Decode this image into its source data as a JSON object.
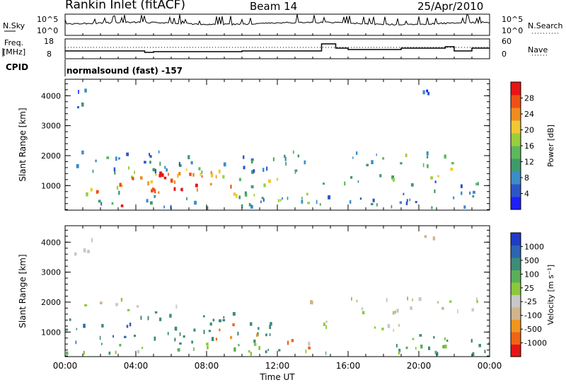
{
  "header": {
    "station": "Rankin Inlet (fitACF)",
    "beam": "Beam 14",
    "date": "25/Apr/2010"
  },
  "status_panels": {
    "nsky_label": "N.Sky",
    "nsearch_label": "N.Search",
    "nsky_ticks": [
      "10^5",
      "10^0"
    ],
    "nsearch_ticks": [
      "10^5",
      "10^0"
    ],
    "freq_label": "Freq.",
    "freq_unit": "[MHz]",
    "freq_ticks": [
      "18",
      "8"
    ],
    "nave_label": "Nave",
    "nave_ticks": [
      "60",
      "0"
    ],
    "cpid_label": "CPID",
    "cpid_value": "normalsound (fast) -157"
  },
  "colors": {
    "power": [
      "#1e1eff",
      "#2d55c8",
      "#3c8cc8",
      "#3f9a6a",
      "#5db85d",
      "#9ccd3c",
      "#f0c832",
      "#f08c1e",
      "#f05014",
      "#e81414"
    ],
    "velocity": [
      "#1e3cc8",
      "#2d64b4",
      "#3c8c78",
      "#5aaf5a",
      "#8cc83c",
      "#c8c8c8",
      "#d2b48c",
      "#f0961e",
      "#f06414",
      "#e81414"
    ],
    "ground_scatter": "#c8c8c8"
  },
  "chart_data": [
    {
      "type": "heatmap",
      "name": "power",
      "ylabel": "Slant Range [km]",
      "yticks": [
        "1000",
        "2000",
        "3000",
        "4000"
      ],
      "ylim": [
        180,
        4550
      ],
      "colorbar_label": "Power [dB]",
      "colorbar_ticks": [
        "4",
        "8",
        "12",
        "16",
        "20",
        "24",
        "28"
      ],
      "colorbar_range": [
        0,
        30
      ],
      "regions": [
        {
          "t": [
            0.3,
            4.0
          ],
          "r": [
            700,
            1050
          ],
          "v": 14
        },
        {
          "t": [
            1.0,
            3.0
          ],
          "r": [
            750,
            950
          ],
          "v": 22
        },
        {
          "t": [
            3.0,
            9.5
          ],
          "r": [
            800,
            1700
          ],
          "v": 22
        },
        {
          "t": [
            4.0,
            8.5
          ],
          "r": [
            850,
            1500
          ],
          "v": 28
        },
        {
          "t": [
            5.5,
            7.5
          ],
          "r": [
            900,
            1300
          ],
          "v": 30
        },
        {
          "t": [
            9.5,
            12.0
          ],
          "r": [
            700,
            1400
          ],
          "v": 16
        },
        {
          "t": [
            12.0,
            14.0
          ],
          "r": [
            400,
            950
          ],
          "v": 18
        },
        {
          "t": [
            0.5,
            14.0
          ],
          "r": [
            1500,
            2200
          ],
          "v": 8
        },
        {
          "t": [
            14.5,
            20.0
          ],
          "r": [
            1100,
            1400
          ],
          "v": 12
        },
        {
          "t": [
            16.0,
            23.5
          ],
          "r": [
            1700,
            2200
          ],
          "v": 12
        },
        {
          "t": [
            20.5,
            22.5
          ],
          "r": [
            1300,
            1650
          ],
          "v": 20
        },
        {
          "t": [
            19.0,
            23.5
          ],
          "r": [
            700,
            1200
          ],
          "v": 8
        },
        {
          "t": [
            0.5,
            1.5
          ],
          "r": [
            3600,
            4300
          ],
          "v": 6
        },
        {
          "t": [
            20.0,
            21.5
          ],
          "r": [
            3900,
            4400
          ],
          "v": 7
        },
        {
          "t": [
            0.0,
            24.0
          ],
          "r": [
            300,
            700
          ],
          "v": 8
        },
        {
          "t": [
            2.5,
            3.5
          ],
          "r": [
            350,
            600
          ],
          "v": 28
        }
      ]
    },
    {
      "type": "heatmap",
      "name": "velocity",
      "ylabel": "Slant Range [km]",
      "yticks": [
        "1000",
        "2000",
        "3000",
        "4000"
      ],
      "ylim": [
        180,
        4550
      ],
      "xlabel": "Time UT",
      "xticks": [
        "00:00",
        "04:00",
        "08:00",
        "12:00",
        "16:00",
        "20:00",
        "00:00"
      ],
      "xlim": [
        0,
        24
      ],
      "colorbar_label": "Velocity [m s^-1]",
      "colorbar_ticks": [
        "1000",
        "500",
        "100",
        "25",
        "-25",
        "-100",
        "-500",
        "-1000"
      ],
      "regions": [
        {
          "t": [
            0.0,
            4.0
          ],
          "r": [
            700,
            1500
          ],
          "v": 300
        },
        {
          "t": [
            4.0,
            9.5
          ],
          "r": [
            700,
            1700
          ],
          "v": 200
        },
        {
          "t": [
            9.5,
            12.0
          ],
          "r": [
            700,
            1400
          ],
          "v": 150
        },
        {
          "t": [
            8.5,
            11.0
          ],
          "r": [
            800,
            1300
          ],
          "v": -150
        },
        {
          "t": [
            12.0,
            14.0
          ],
          "r": [
            400,
            950
          ],
          "v": -300
        },
        {
          "t": [
            14.5,
            15.2
          ],
          "r": [
            1700,
            2300
          ],
          "v": -200
        },
        {
          "t": [
            1.0,
            8.0
          ],
          "r": [
            1750,
            2150
          ],
          "v": 0
        },
        {
          "t": [
            12.5,
            14.0
          ],
          "r": [
            1800,
            2150
          ],
          "v": 0
        },
        {
          "t": [
            16.0,
            23.5
          ],
          "r": [
            1700,
            2200
          ],
          "v": 0
        },
        {
          "t": [
            14.5,
            20.0
          ],
          "r": [
            1100,
            1400
          ],
          "v": 0
        },
        {
          "t": [
            18.5,
            23.5
          ],
          "r": [
            700,
            1000
          ],
          "v": 100
        },
        {
          "t": [
            0.5,
            1.5
          ],
          "r": [
            3600,
            4300
          ],
          "v": 0
        },
        {
          "t": [
            20.0,
            21.5
          ],
          "r": [
            3900,
            4400
          ],
          "v": -60
        },
        {
          "t": [
            0.0,
            24.0
          ],
          "r": [
            300,
            700
          ],
          "v": 80
        }
      ]
    }
  ]
}
